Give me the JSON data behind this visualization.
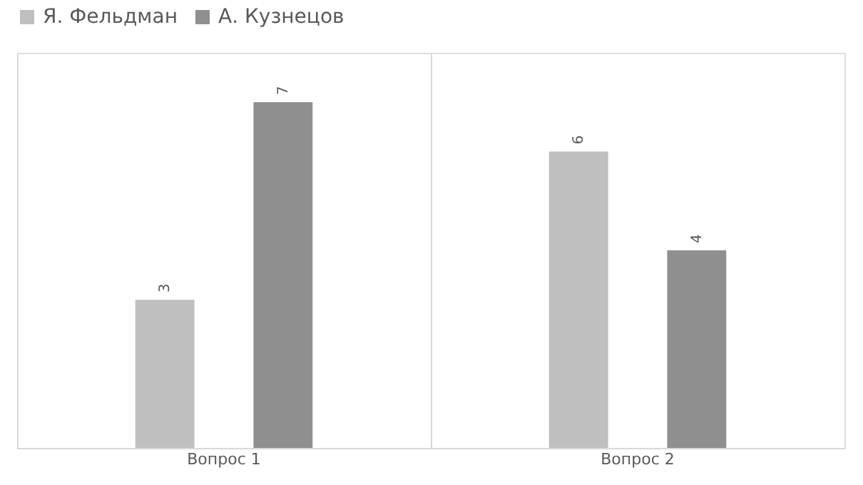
{
  "chart_data": {
    "type": "bar",
    "categories": [
      "Вопрос 1",
      "Вопрос 2"
    ],
    "series": [
      {
        "name": "Я. Фельдман",
        "color": "#bfbfbf",
        "values": [
          3,
          6
        ]
      },
      {
        "name": "А. Кузнецов",
        "color": "#8f8f8f",
        "values": [
          7,
          4
        ]
      }
    ],
    "ylim": [
      0,
      8
    ],
    "data_labels": true,
    "legend": "top",
    "grid": "x",
    "tick_labels": "x"
  }
}
